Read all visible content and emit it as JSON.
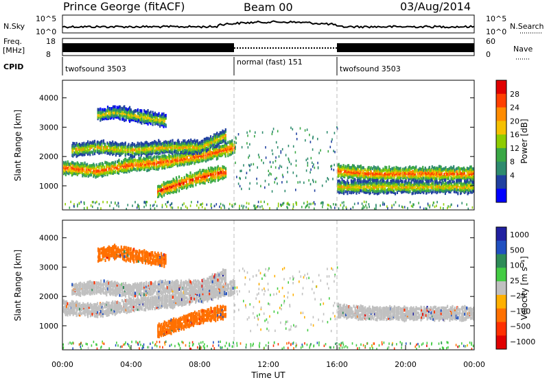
{
  "header": {
    "station": "Prince George (fitACF)",
    "beam": "Beam 00",
    "date": "03/Aug/2014"
  },
  "top_panels": {
    "nsky_label": "N.Sky",
    "nsky_ticks": [
      "10^5",
      "10^0"
    ],
    "nsearch_label": "N.Search",
    "nsearch_ticks": [
      "10^5",
      "10^0"
    ],
    "freq_label_1": "Freq.",
    "freq_label_2": "[MHz]",
    "freq_ticks": [
      "18",
      "8"
    ],
    "nave_label": "Nave",
    "nave_ticks": [
      "60",
      "0"
    ],
    "cpid_label": "CPID",
    "cpid_segments": [
      {
        "label": "twofsound 3503",
        "start": 0,
        "end": 10
      },
      {
        "label": "normal (fast) 151",
        "start": 10,
        "end": 16
      },
      {
        "label": "twofsound 3503",
        "start": 16,
        "end": 24
      }
    ]
  },
  "power_colorbar": {
    "title": "Power [dB]",
    "ticks": [
      "28",
      "24",
      "20",
      "16",
      "12",
      "8",
      "4"
    ],
    "colors": [
      "#e00000",
      "#ff4000",
      "#ff8c00",
      "#f5c000",
      "#8ecc00",
      "#3aa845",
      "#2e8b6e",
      "#2040a0",
      "#0000ff"
    ]
  },
  "velocity_colorbar": {
    "title": "Velocity [m s⁻¹]",
    "ticks": [
      "1000",
      "500",
      "100",
      "25",
      "−25",
      "−100",
      "−500",
      "−1000"
    ],
    "colors": [
      "#2020a0",
      "#2050c0",
      "#2e8b57",
      "#44cc44",
      "#c0c0c0",
      "#ffb000",
      "#ff7000",
      "#ff3000",
      "#e00000"
    ]
  },
  "chart_data": [
    {
      "type": "heatmap",
      "panel": "power",
      "ylabel": "Slant Range [km]",
      "xlim": [
        0,
        24
      ],
      "ylim": [
        180,
        4600
      ],
      "yticks": [
        "1000",
        "2000",
        "3000",
        "4000"
      ],
      "bands": [
        {
          "name": "main",
          "x": [
            0,
            2,
            4,
            6,
            8,
            10
          ],
          "y": [
            1600,
            1500,
            1700,
            1800,
            2000,
            2300
          ],
          "value_db": 22
        },
        {
          "name": "upper",
          "x": [
            0.5,
            2,
            4,
            6,
            8,
            9.5
          ],
          "y": [
            2200,
            2300,
            2200,
            2300,
            2300,
            2700
          ],
          "value_db": 16
        },
        {
          "name": "high",
          "x": [
            2,
            3,
            4,
            5,
            6
          ],
          "y": [
            3400,
            3500,
            3400,
            3300,
            3200
          ],
          "value_db": 14
        },
        {
          "name": "low_arc",
          "x": [
            5.5,
            6.5,
            7.5,
            8.5,
            9.5
          ],
          "y": [
            800,
            1000,
            1200,
            1350,
            1450
          ],
          "value_db": 24
        },
        {
          "name": "late",
          "x": [
            16,
            18,
            20,
            22,
            24
          ],
          "y": [
            1500,
            1400,
            1400,
            1400,
            1400
          ],
          "value_db": 22
        },
        {
          "name": "late_low",
          "x": [
            16,
            18,
            20,
            22,
            24
          ],
          "y": [
            950,
            950,
            950,
            950,
            950
          ],
          "value_db": 16
        }
      ]
    },
    {
      "type": "heatmap",
      "panel": "velocity",
      "ylabel": "Slant Range [km]",
      "xlim": [
        0,
        24
      ],
      "ylim": [
        180,
        4600
      ],
      "yticks": [
        "1000",
        "2000",
        "3000",
        "4000"
      ],
      "xticks": [
        "00:00",
        "04:00",
        "08:00",
        "12:00",
        "16:00",
        "20:00",
        "00:00"
      ],
      "xlabel": "Time UT",
      "bands": [
        {
          "name": "main",
          "x": [
            0,
            2,
            4,
            6,
            8,
            10
          ],
          "y": [
            1600,
            1500,
            1700,
            1800,
            2000,
            2300
          ],
          "value_ms": 0
        },
        {
          "name": "upper",
          "x": [
            0.5,
            2,
            4,
            6,
            8,
            9.5
          ],
          "y": [
            2200,
            2300,
            2200,
            2300,
            2300,
            2700
          ],
          "value_ms": 0
        },
        {
          "name": "high",
          "x": [
            2,
            3,
            4,
            5,
            6
          ],
          "y": [
            3400,
            3500,
            3400,
            3300,
            3200
          ],
          "value_ms": -100
        },
        {
          "name": "low_arc",
          "x": [
            5.5,
            6.5,
            7.5,
            8.5,
            9.5
          ],
          "y": [
            800,
            1000,
            1200,
            1350,
            1450
          ],
          "value_ms": -100
        },
        {
          "name": "late",
          "x": [
            16,
            18,
            20,
            22,
            24
          ],
          "y": [
            1500,
            1400,
            1400,
            1400,
            1400
          ],
          "value_ms": 0
        }
      ]
    }
  ]
}
